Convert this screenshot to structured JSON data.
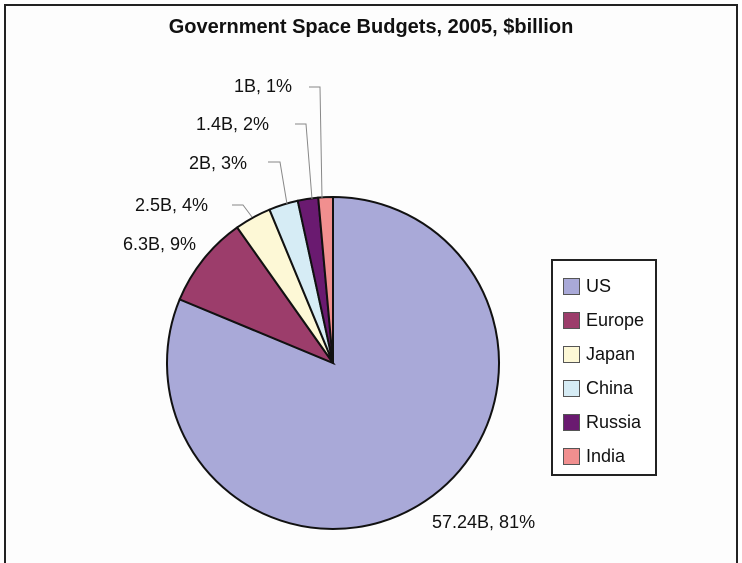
{
  "chart_data": {
    "type": "pie",
    "title": "Government Space Budgets, 2005, $billion",
    "categories": [
      "US",
      "Europe",
      "Japan",
      "China",
      "Russia",
      "India"
    ],
    "values": [
      57.24,
      6.3,
      2.5,
      2,
      1.4,
      1
    ],
    "percents": [
      81,
      9,
      4,
      3,
      2,
      1
    ],
    "data_labels": [
      "57.24B, 81%",
      "6.3B, 9%",
      "2.5B, 4%",
      "2B, 3%",
      "1.4B, 2%",
      "1B, 1%"
    ],
    "colors": [
      "#a9a9d8",
      "#9c3d6b",
      "#fdf8d6",
      "#d6ecf5",
      "#6a1a70",
      "#f18f8f"
    ],
    "legend": [
      "US",
      "Europe",
      "Japan",
      "China",
      "Russia",
      "India"
    ],
    "legend_position": "right"
  }
}
